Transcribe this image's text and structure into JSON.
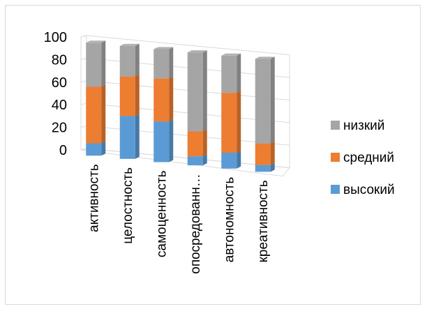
{
  "chart_data": {
    "type": "bar",
    "stacked": true,
    "three_d": true,
    "categories": [
      "активность",
      "целостность",
      "самоценность",
      "опосредованн…",
      "автономность",
      "креативность"
    ],
    "series": [
      {
        "name": "высокий",
        "color": "#5b9bd5",
        "values": [
          11,
          38,
          36,
          8,
          14,
          6
        ]
      },
      {
        "name": "средний",
        "color": "#ed7d31",
        "values": [
          50,
          35,
          38,
          22,
          53,
          19
        ]
      },
      {
        "name": "низкий",
        "color": "#a5a5a5",
        "values": [
          39,
          27,
          26,
          70,
          33,
          75
        ]
      }
    ],
    "legend_order": [
      "низкий",
      "средний",
      "высокий"
    ],
    "ylim": [
      0,
      100
    ],
    "yticks": [
      0,
      20,
      40,
      60,
      80,
      100
    ],
    "grid": true,
    "legend_position": "right",
    "title": "",
    "xlabel": "",
    "ylabel": ""
  }
}
